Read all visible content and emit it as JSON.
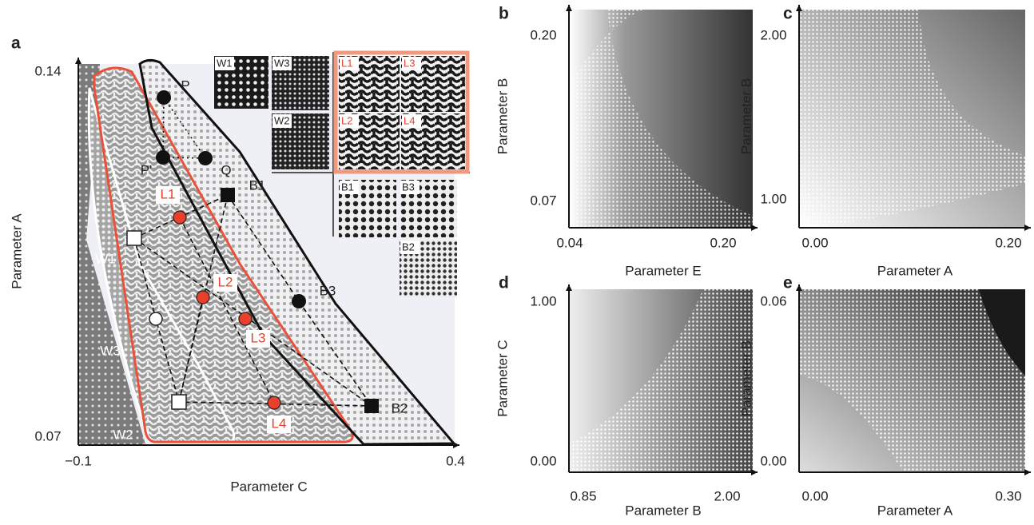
{
  "panels": [
    {
      "label": "a",
      "y_label": "Parameter A",
      "x_label": "Parameter C",
      "y_ticks": [
        "0.14",
        "0.07"
      ],
      "x_ticks": [
        "−0.1",
        "0.4"
      ],
      "markers": [
        {
          "label": "P"
        },
        {
          "label": "P'"
        },
        {
          "label": "Q"
        },
        {
          "label": "B1"
        },
        {
          "label": "B2"
        },
        {
          "label": "B3"
        },
        {
          "label": "W1"
        },
        {
          "label": "W2"
        },
        {
          "label": "W3"
        },
        {
          "label": "L1"
        },
        {
          "label": "L2"
        },
        {
          "label": "L3"
        },
        {
          "label": "L4"
        }
      ],
      "insets": [
        "W1",
        "W3",
        "W2",
        "L1",
        "L3",
        "L2",
        "L4",
        "B1",
        "B3",
        "B2"
      ]
    },
    {
      "label": "b",
      "y_label": "Parameter B",
      "x_label": "Parameter E",
      "y_ticks": [
        "0.20",
        "0.07"
      ],
      "x_ticks": [
        "0.04",
        "0.20"
      ]
    },
    {
      "label": "c",
      "y_label": "Parameter B",
      "x_label": "Parameter A",
      "y_ticks": [
        "2.00",
        "1.00"
      ],
      "x_ticks": [
        "0.00",
        "0.20"
      ]
    },
    {
      "label": "d",
      "y_label": "Parameter C",
      "x_label": "Parameter B",
      "y_ticks": [
        "1.00",
        "0.00"
      ],
      "x_ticks": [
        "0.85",
        "2.00"
      ]
    },
    {
      "label": "e",
      "y_label": "Parameter B",
      "x_label": "Parameter A",
      "y_ticks": [
        "0.06",
        "0.00"
      ],
      "x_ticks": [
        "0.00",
        "0.30"
      ]
    }
  ]
}
